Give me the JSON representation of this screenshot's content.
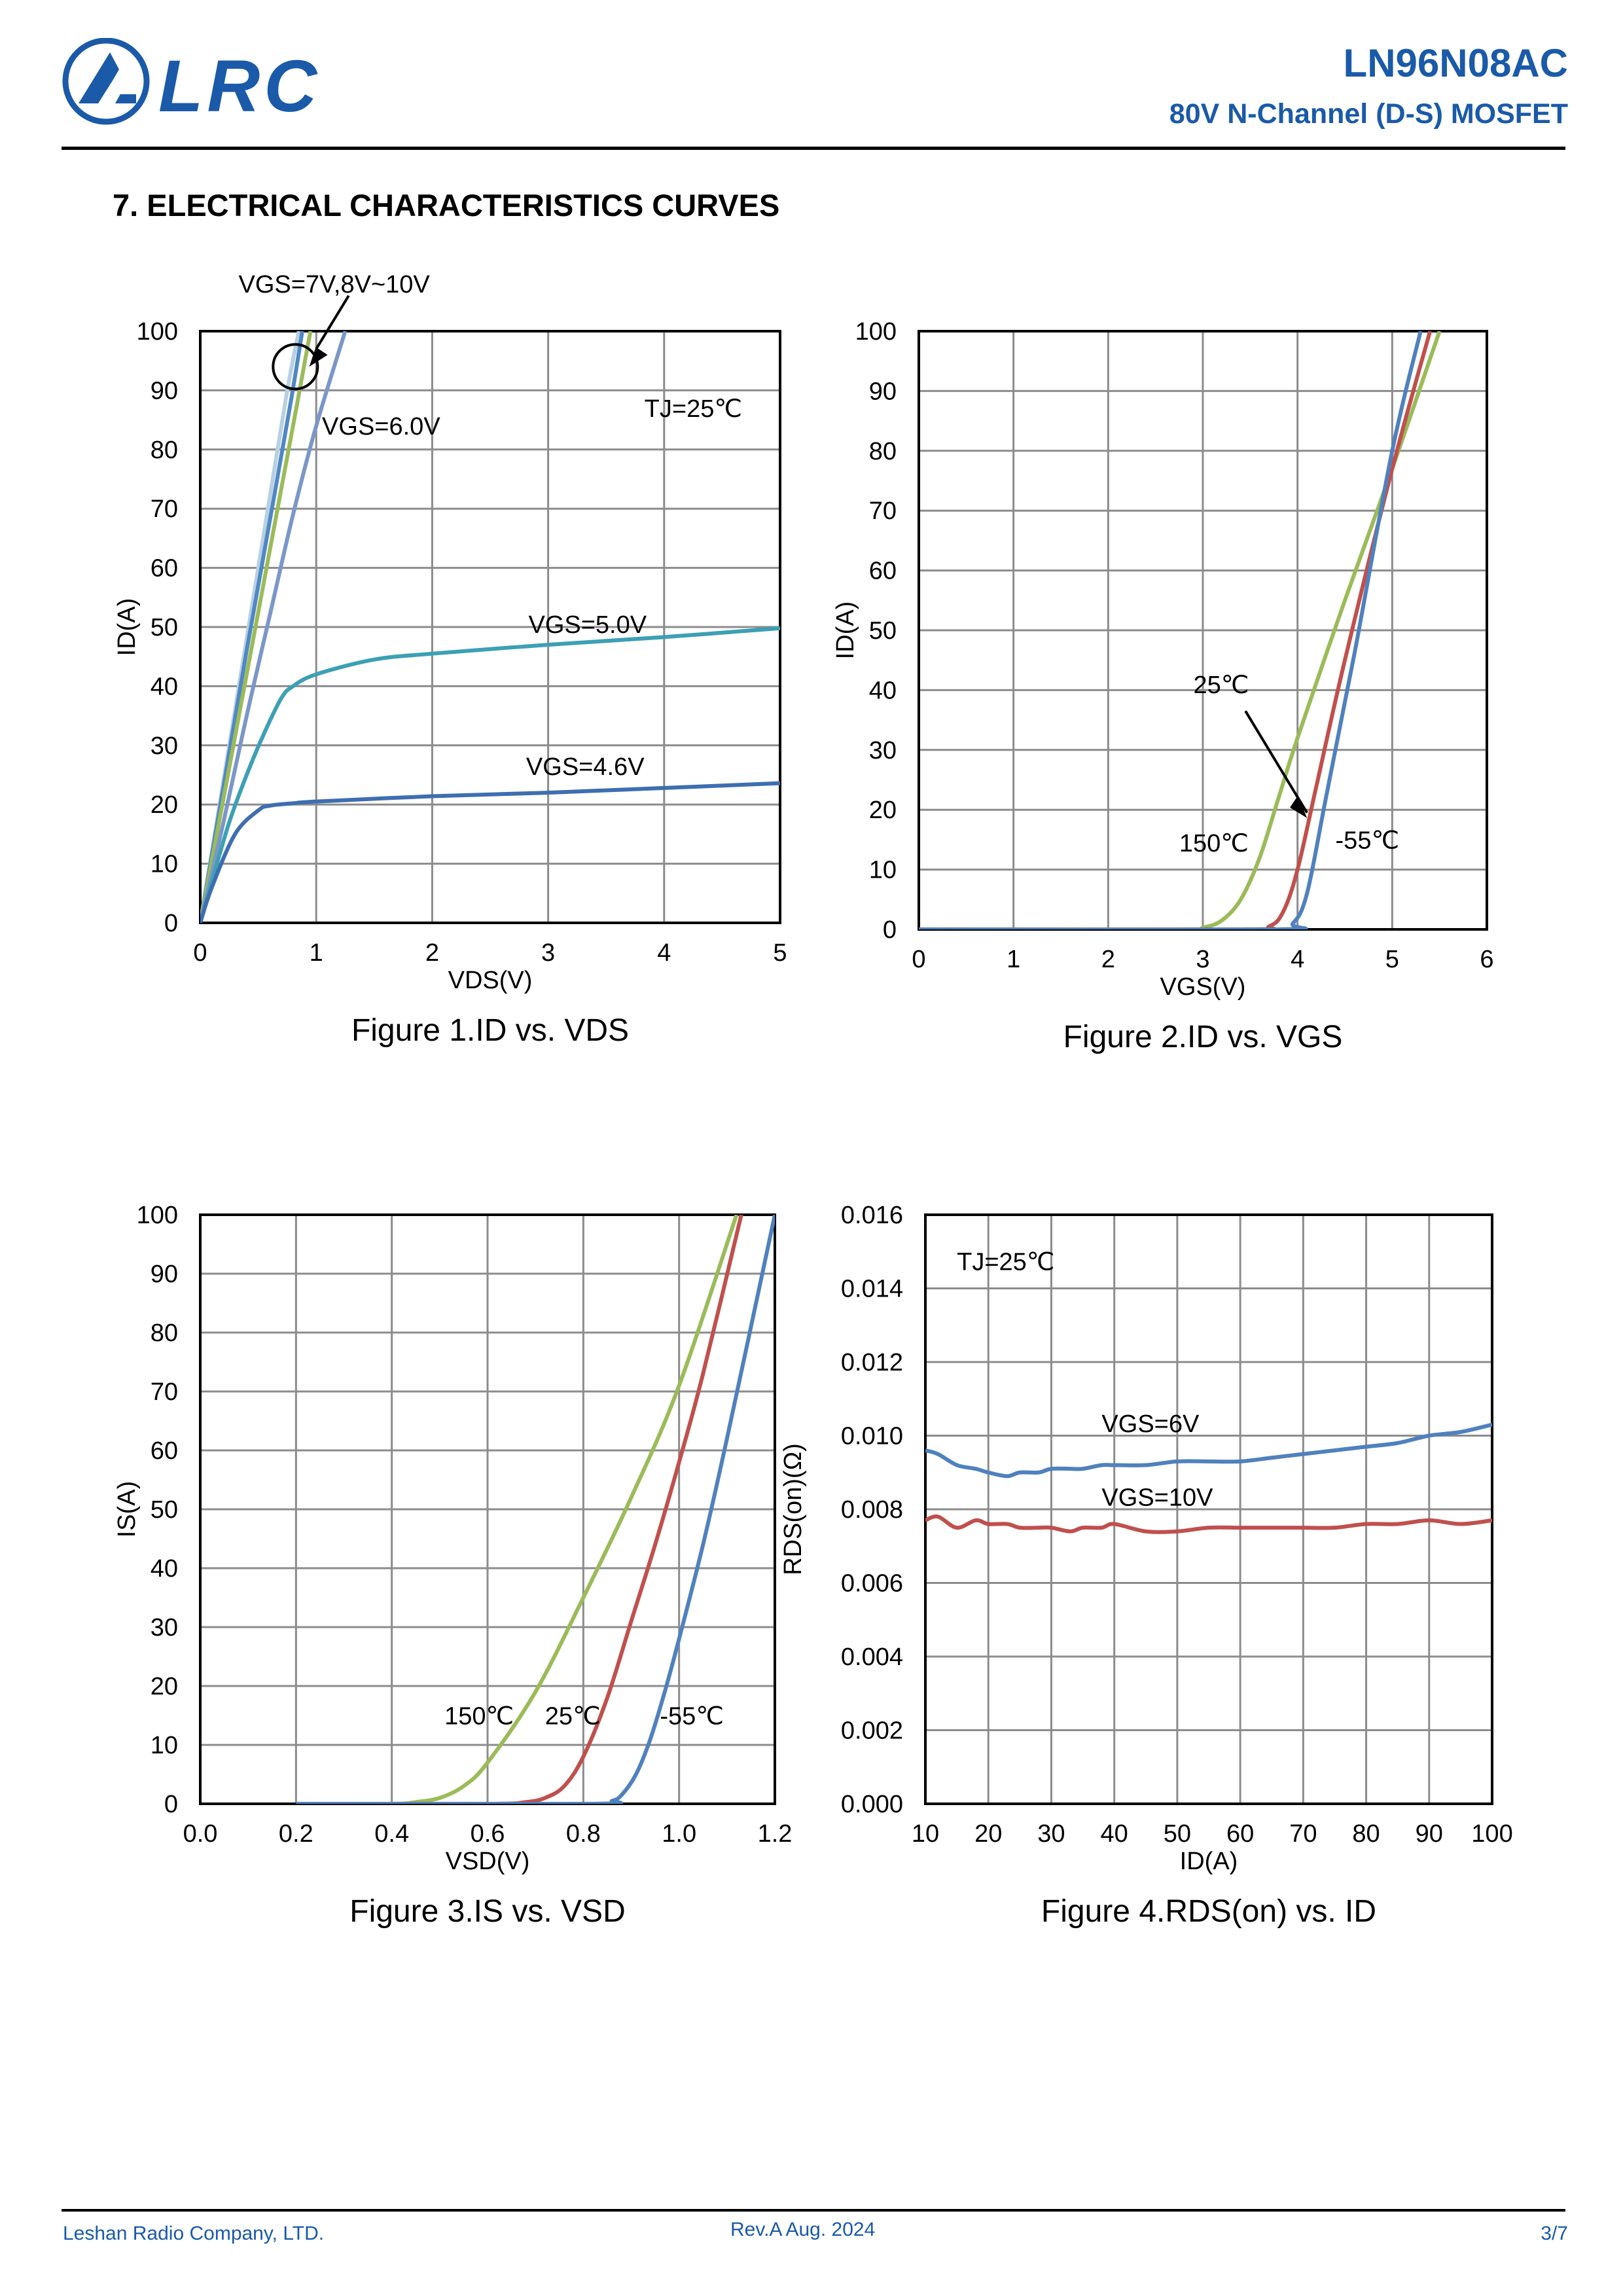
{
  "brand": {
    "name": "LRC",
    "primary_color": "#1a5aa8"
  },
  "header": {
    "part_number": "LN96N08AC",
    "description": "80V N-Channel (D-S) MOSFET"
  },
  "section": {
    "title": "7. ELECTRICAL CHARACTERISTICS CURVES"
  },
  "footer": {
    "company": "Leshan Radio Company, LTD.",
    "revision": "Rev.A  Aug.  2024",
    "page": "3/7"
  },
  "chart_data": [
    {
      "id": "fig1",
      "type": "line",
      "title": "Figure 1.ID vs. VDS",
      "xlabel": "VDS(V)",
      "ylabel": "ID(A)",
      "xlim": [
        0,
        5
      ],
      "ylim": [
        0,
        100
      ],
      "xticks": [
        0,
        1,
        2,
        3,
        4,
        5
      ],
      "xtick_labels": [
        "0",
        "1",
        "2",
        "3",
        "4",
        "5"
      ],
      "yticks": [
        0,
        10,
        20,
        30,
        40,
        50,
        60,
        70,
        80,
        90,
        100
      ],
      "ytick_labels": [
        "0",
        "10",
        "20",
        "30",
        "40",
        "50",
        "60",
        "70",
        "80",
        "90",
        "100"
      ],
      "grid": true,
      "series": [
        {
          "name": "VGS=10V",
          "color": "#b8d0e4",
          "x": [
            0,
            0.2,
            0.4,
            0.6,
            0.75,
            0.85
          ],
          "y": [
            0,
            24,
            48,
            72,
            90,
            100
          ]
        },
        {
          "name": "VGS=8V",
          "color": "#4f88c4",
          "x": [
            0,
            0.2,
            0.4,
            0.6,
            0.78,
            0.88
          ],
          "y": [
            0,
            23,
            46,
            68,
            88,
            100
          ]
        },
        {
          "name": "VGS=7V",
          "color": "#9bbb59",
          "x": [
            0,
            0.2,
            0.4,
            0.6,
            0.8,
            0.95
          ],
          "y": [
            0,
            21,
            42,
            63,
            84,
            100
          ]
        },
        {
          "name": "VGS=6.0V",
          "color": "#7b97c8",
          "x": [
            0,
            0.2,
            0.4,
            0.6,
            0.8,
            1.0,
            1.25
          ],
          "y": [
            0,
            17,
            35,
            52,
            69,
            84,
            100
          ]
        },
        {
          "name": "VGS=5.0V",
          "color": "#3da0b4",
          "x": [
            0,
            0.1,
            0.25,
            0.4,
            0.55,
            0.7,
            0.8,
            1.0,
            1.5,
            2.0,
            3.0,
            4.0,
            5.0
          ],
          "y": [
            0,
            7,
            17,
            25,
            32,
            38,
            40,
            42,
            44.5,
            45.5,
            47,
            48.3,
            49.8
          ]
        },
        {
          "name": "VGS=4.6V",
          "color": "#3e6eb0",
          "x": [
            0,
            0.1,
            0.3,
            0.5,
            0.6,
            0.8,
            1.0,
            2.0,
            3.0,
            4.0,
            5.0
          ],
          "y": [
            0,
            6,
            15,
            19,
            19.8,
            20.2,
            20.5,
            21.4,
            22,
            22.8,
            23.6
          ]
        }
      ],
      "annotations": [
        {
          "text": "VGS=7V,8V~10V",
          "at": [
            0.33,
            106.5
          ]
        },
        {
          "text": "VGS=6.0V",
          "at": [
            1.05,
            82.5
          ]
        },
        {
          "text": "TJ=25℃",
          "at": [
            3.83,
            85.5
          ]
        },
        {
          "text": "VGS=5.0V",
          "at": [
            2.83,
            49
          ]
        },
        {
          "text": "VGS=4.6V",
          "at": [
            2.81,
            25
          ]
        }
      ]
    },
    {
      "id": "fig2",
      "type": "line",
      "title": "Figure 2.ID vs. VGS",
      "xlabel": "VGS(V)",
      "ylabel": "ID(A)",
      "xlim": [
        0,
        6
      ],
      "ylim": [
        0,
        100
      ],
      "xticks": [
        0,
        1,
        2,
        3,
        4,
        5,
        6
      ],
      "xtick_labels": [
        "0",
        "1",
        "2",
        "3",
        "4",
        "5",
        "6"
      ],
      "yticks": [
        0,
        10,
        20,
        30,
        40,
        50,
        60,
        70,
        80,
        90,
        100
      ],
      "ytick_labels": [
        "0",
        "10",
        "20",
        "30",
        "40",
        "50",
        "60",
        "70",
        "80",
        "90",
        "100"
      ],
      "grid": true,
      "series": [
        {
          "name": "150℃",
          "color": "#9bbb59",
          "x": [
            0,
            2.8,
            3.0,
            3.2,
            3.4,
            3.6,
            3.8,
            4.0,
            4.5,
            5.0,
            5.5
          ],
          "y": [
            0,
            0,
            0.3,
            1.5,
            5,
            12,
            22,
            32,
            55,
            77,
            100
          ]
        },
        {
          "name": "25℃",
          "color": "#c0504d",
          "x": [
            0,
            3.4,
            3.7,
            3.85,
            4.0,
            4.2,
            4.5,
            5.0,
            5.4
          ],
          "y": [
            0,
            0,
            0.5,
            3,
            10,
            24,
            45,
            77,
            100
          ]
        },
        {
          "name": "-55℃",
          "color": "#4f81bd",
          "x": [
            0,
            3.75,
            3.95,
            4.1,
            4.3,
            4.6,
            5.0,
            5.3
          ],
          "y": [
            0,
            0,
            1,
            6,
            22,
            46,
            80,
            100
          ]
        }
      ],
      "annotations": [
        {
          "text": "25℃",
          "at": [
            2.9,
            39.5
          ]
        },
        {
          "text": "150℃",
          "at": [
            2.75,
            13
          ]
        },
        {
          "text": "-55℃",
          "at": [
            4.4,
            13.5
          ]
        }
      ]
    },
    {
      "id": "fig3",
      "type": "line",
      "title": "Figure 3.IS vs. VSD",
      "xlabel": "VSD(V)",
      "ylabel": "IS(A)",
      "xlim": [
        0,
        1.2
      ],
      "ylim": [
        0,
        100
      ],
      "xticks": [
        0,
        0.2,
        0.4,
        0.6,
        0.8,
        1.0,
        1.2
      ],
      "xtick_labels": [
        "0.0",
        "0.2",
        "0.4",
        "0.6",
        "0.8",
        "1.0",
        "1.2"
      ],
      "yticks": [
        0,
        10,
        20,
        30,
        40,
        50,
        60,
        70,
        80,
        90,
        100
      ],
      "ytick_labels": [
        "0",
        "10",
        "20",
        "30",
        "40",
        "50",
        "60",
        "70",
        "80",
        "90",
        "100"
      ],
      "grid": true,
      "series": [
        {
          "name": "150℃",
          "color": "#9bbb59",
          "x": [
            0.2,
            0.4,
            0.45,
            0.5,
            0.55,
            0.6,
            0.7,
            0.8,
            0.9,
            1.0,
            1.12
          ],
          "y": [
            0,
            0,
            0.3,
            1,
            3,
            7,
            19,
            35,
            52,
            71,
            100
          ]
        },
        {
          "name": "25℃",
          "color": "#c0504d",
          "x": [
            0.2,
            0.6,
            0.68,
            0.72,
            0.76,
            0.8,
            0.85,
            0.9,
            0.95,
            1.0,
            1.05,
            1.13
          ],
          "y": [
            0,
            0,
            0.3,
            1,
            3,
            8,
            18,
            31,
            44,
            58,
            73,
            100
          ]
        },
        {
          "name": "-55℃",
          "color": "#4f81bd",
          "x": [
            0.2,
            0.82,
            0.86,
            0.88,
            0.91,
            0.94,
            0.97,
            1.0,
            1.05,
            1.1,
            1.2
          ],
          "y": [
            0,
            0,
            0.5,
            1.5,
            5,
            11,
            19,
            28,
            44,
            62,
            100
          ]
        }
      ],
      "annotations": [
        {
          "text": "150℃",
          "at": [
            0.51,
            13.5
          ]
        },
        {
          "text": "25℃",
          "at": [
            0.72,
            13.5
          ]
        },
        {
          "text": "-55℃",
          "at": [
            0.96,
            13.5
          ]
        }
      ]
    },
    {
      "id": "fig4",
      "type": "line",
      "title": "Figure 4.RDS(on) vs. ID",
      "xlabel": "ID(A)",
      "ylabel": "RDS(on)(Ω)",
      "xlim": [
        10,
        100
      ],
      "ylim": [
        0,
        0.016
      ],
      "xticks": [
        10,
        20,
        30,
        40,
        50,
        60,
        70,
        80,
        90,
        100
      ],
      "xtick_labels": [
        "10",
        "20",
        "30",
        "40",
        "50",
        "60",
        "70",
        "80",
        "90",
        "100"
      ],
      "yticks": [
        0,
        0.002,
        0.004,
        0.006,
        0.008,
        0.01,
        0.012,
        0.014,
        0.016
      ],
      "ytick_labels": [
        "0.000",
        "0.002",
        "0.004",
        "0.006",
        "0.008",
        "0.010",
        "0.012",
        "0.014",
        "0.016"
      ],
      "grid": true,
      "series": [
        {
          "name": "VGS=6V",
          "color": "#4f81bd",
          "x": [
            10,
            12,
            15,
            18,
            20,
            23,
            25,
            28,
            30,
            33,
            35,
            38,
            40,
            45,
            50,
            55,
            60,
            65,
            70,
            75,
            80,
            85,
            90,
            95,
            100
          ],
          "y": [
            0.0096,
            0.0095,
            0.0092,
            0.0091,
            0.009,
            0.0089,
            0.009,
            0.009,
            0.0091,
            0.0091,
            0.0091,
            0.0092,
            0.0092,
            0.0092,
            0.0093,
            0.0093,
            0.0093,
            0.0094,
            0.0095,
            0.0096,
            0.0097,
            0.0098,
            0.01,
            0.0101,
            0.0103
          ]
        },
        {
          "name": "VGS=10V",
          "color": "#c0504d",
          "x": [
            10,
            12,
            15,
            18,
            20,
            23,
            25,
            28,
            30,
            33,
            35,
            38,
            40,
            45,
            50,
            55,
            60,
            65,
            70,
            75,
            80,
            85,
            90,
            95,
            100
          ],
          "y": [
            0.0077,
            0.0078,
            0.0075,
            0.0077,
            0.0076,
            0.0076,
            0.0075,
            0.0075,
            0.0075,
            0.0074,
            0.0075,
            0.0075,
            0.0076,
            0.0074,
            0.0074,
            0.0075,
            0.0075,
            0.0075,
            0.0075,
            0.0075,
            0.0076,
            0.0076,
            0.0077,
            0.0076,
            0.0077
          ]
        }
      ],
      "annotations": [
        {
          "text": "TJ=25℃",
          "at": [
            15,
            0.0145
          ]
        },
        {
          "text": "VGS=6V",
          "at": [
            38,
            0.0101
          ]
        },
        {
          "text": "VGS=10V",
          "at": [
            38,
            0.0081
          ]
        }
      ]
    }
  ]
}
